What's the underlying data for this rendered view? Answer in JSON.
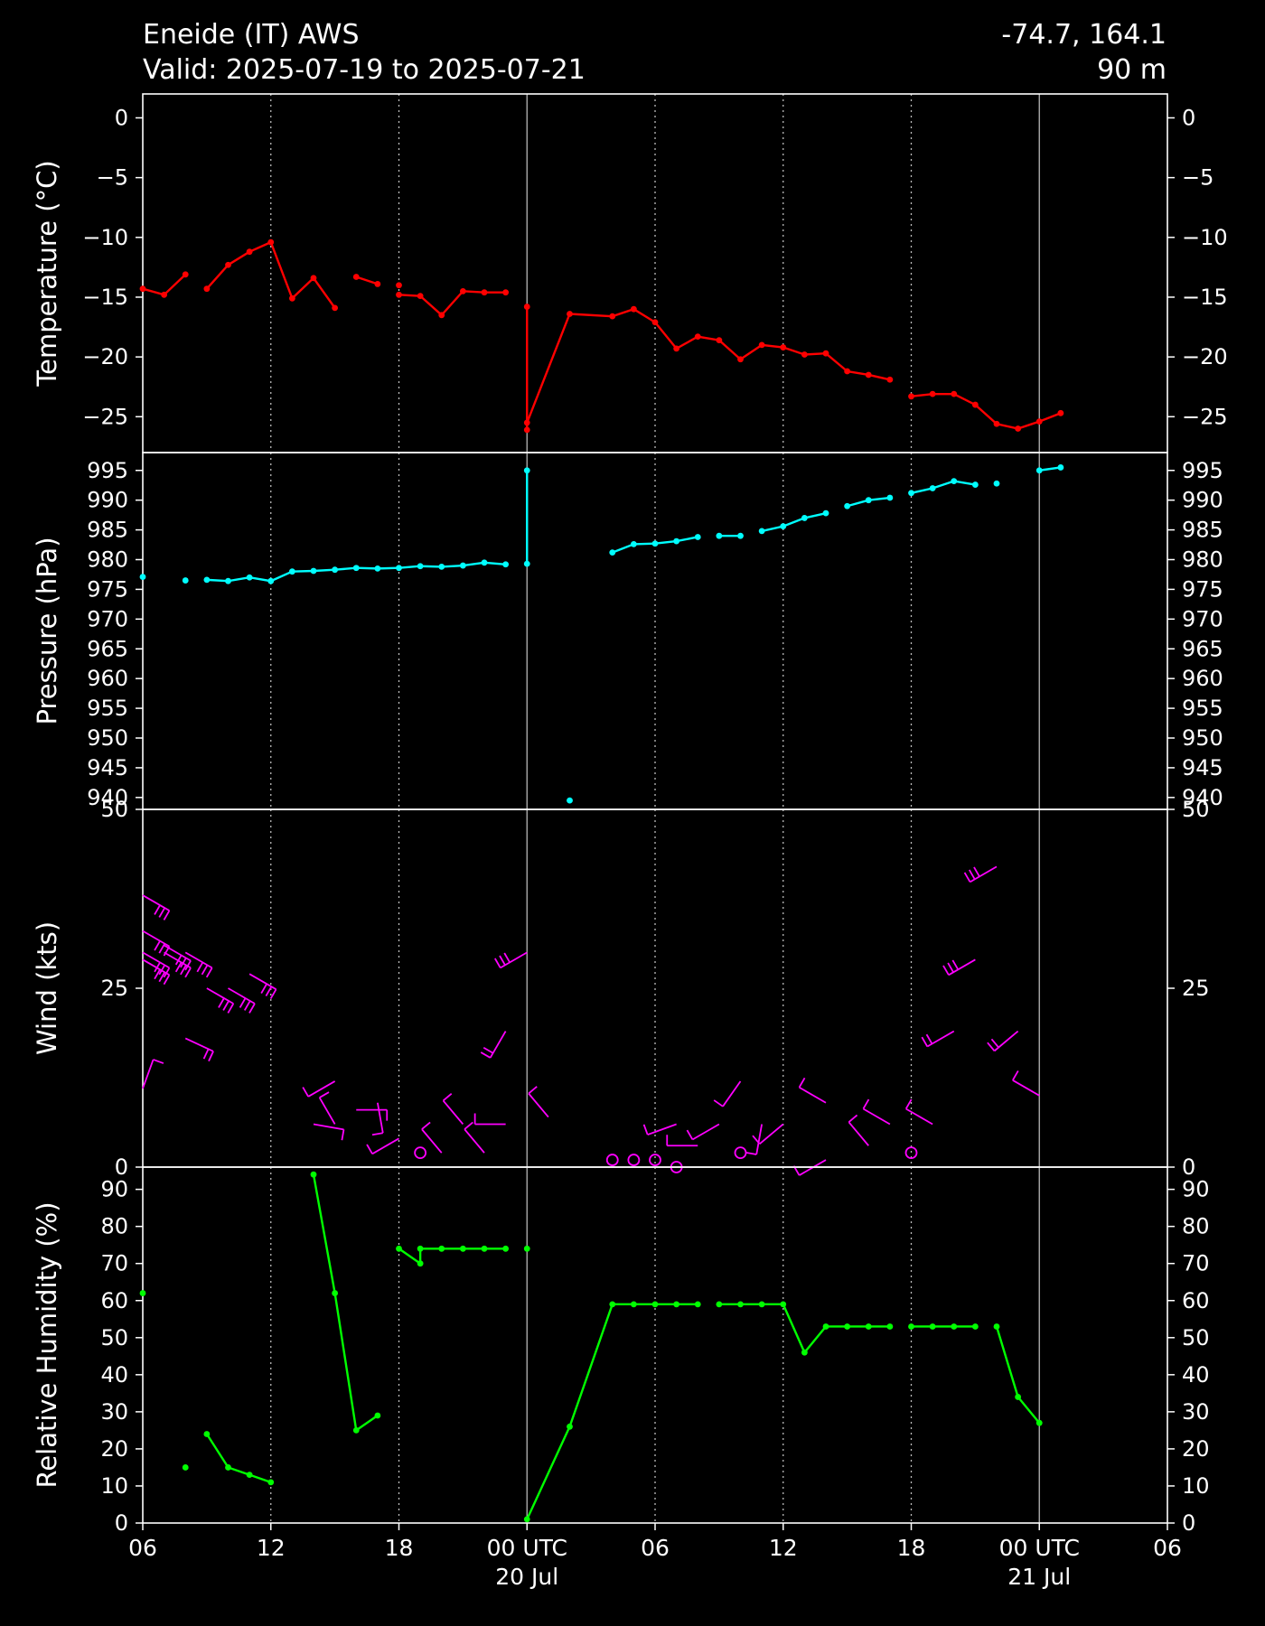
{
  "header": {
    "station": "Eneide (IT) AWS",
    "valid": "Valid: 2025-07-19 to 2025-07-21",
    "coords": "-74.7, 164.1",
    "elevation": "90 m"
  },
  "colors": {
    "background": "#000000",
    "foreground": "#ffffff",
    "temperature": "#ff0000",
    "pressure": "#00ffff",
    "wind": "#ff00ff",
    "humidity": "#00ff00"
  },
  "chart_data": {
    "type": "line",
    "x_axis": {
      "unit": "hours since 2025-07-19 00 UTC",
      "range": [
        6,
        54
      ],
      "ticks": [
        {
          "x": 6,
          "label": "06",
          "sub": ""
        },
        {
          "x": 12,
          "label": "12",
          "sub": ""
        },
        {
          "x": 18,
          "label": "18",
          "sub": ""
        },
        {
          "x": 24,
          "label": "00 UTC",
          "sub": "20 Jul"
        },
        {
          "x": 30,
          "label": "06",
          "sub": ""
        },
        {
          "x": 36,
          "label": "12",
          "sub": ""
        },
        {
          "x": 42,
          "label": "18",
          "sub": ""
        },
        {
          "x": 48,
          "label": "00 UTC",
          "sub": "21 Jul"
        },
        {
          "x": 54,
          "label": "06",
          "sub": ""
        }
      ],
      "major_vlines": [
        24,
        48
      ],
      "minor_vlines": [
        12,
        18,
        30,
        36,
        42
      ]
    },
    "panels": [
      {
        "id": "temperature",
        "ylabel": "Temperature ($^\\circ$C)",
        "ylim": [
          -28,
          2
        ],
        "ticks": [
          0,
          -5,
          -10,
          -15,
          -20,
          -25
        ],
        "segments": [
          [
            [
              6,
              -14.3
            ],
            [
              7,
              -14.8
            ],
            [
              8,
              -13.1
            ]
          ],
          [
            [
              9,
              -14.3
            ],
            [
              10,
              -12.3
            ],
            [
              11,
              -11.2
            ],
            [
              12,
              -10.4
            ],
            [
              13,
              -15.1
            ],
            [
              14,
              -13.4
            ],
            [
              15,
              -15.9
            ]
          ],
          [
            [
              16,
              -13.3
            ],
            [
              17,
              -13.9
            ]
          ],
          [
            [
              18,
              -14.0
            ]
          ],
          [
            [
              18,
              -14.8
            ],
            [
              19,
              -14.9
            ],
            [
              20,
              -16.5
            ],
            [
              21,
              -14.5
            ],
            [
              22,
              -14.6
            ],
            [
              23,
              -14.6
            ]
          ],
          [
            [
              24,
              -15.8
            ],
            [
              24,
              -26.1
            ],
            [
              24,
              -25.5
            ],
            [
              26,
              -16.4
            ],
            [
              28,
              -16.6
            ],
            [
              29,
              -16.0
            ],
            [
              30,
              -17.1
            ],
            [
              31,
              -19.3
            ],
            [
              32,
              -18.3
            ],
            [
              33,
              -18.6
            ],
            [
              34,
              -20.2
            ],
            [
              35,
              -19.0
            ],
            [
              36,
              -19.2
            ],
            [
              37,
              -19.8
            ],
            [
              38,
              -19.7
            ],
            [
              39,
              -21.2
            ],
            [
              40,
              -21.5
            ],
            [
              41,
              -21.9
            ]
          ],
          [
            [
              42,
              -23.3
            ],
            [
              43,
              -23.1
            ],
            [
              44,
              -23.1
            ],
            [
              45,
              -24.0
            ],
            [
              46,
              -25.6
            ],
            [
              47,
              -26.0
            ],
            [
              48,
              -25.4
            ],
            [
              49,
              -24.7
            ]
          ]
        ]
      },
      {
        "id": "pressure",
        "ylabel": "Pressure (hPa)",
        "ylim": [
          938,
          998
        ],
        "ticks": [
          995,
          990,
          985,
          980,
          975,
          970,
          965,
          960,
          955,
          950,
          945,
          940
        ],
        "segments": [
          [
            [
              6,
              977.1
            ]
          ],
          [
            [
              8,
              976.5
            ]
          ],
          [
            [
              9,
              976.6
            ],
            [
              10,
              976.4
            ],
            [
              11,
              977.0
            ],
            [
              12,
              976.4
            ],
            [
              13,
              978.0
            ],
            [
              14,
              978.1
            ],
            [
              15,
              978.3
            ],
            [
              16,
              978.6
            ],
            [
              17,
              978.5
            ],
            [
              18,
              978.6
            ],
            [
              19,
              978.9
            ],
            [
              20,
              978.8
            ],
            [
              21,
              979.0
            ],
            [
              22,
              979.5
            ],
            [
              23,
              979.2
            ]
          ],
          [
            [
              24,
              995.0
            ],
            [
              24,
              979.3
            ]
          ],
          [
            [
              26,
              939.5
            ]
          ],
          [
            [
              28,
              981.2
            ],
            [
              29,
              982.6
            ],
            [
              30,
              982.7
            ],
            [
              31,
              983.1
            ],
            [
              32,
              983.8
            ]
          ],
          [
            [
              33,
              984.0
            ],
            [
              34,
              984.0
            ]
          ],
          [
            [
              35,
              984.8
            ],
            [
              36,
              985.6
            ],
            [
              37,
              987.0
            ],
            [
              38,
              987.8
            ]
          ],
          [
            [
              39,
              989.0
            ],
            [
              40,
              990.0
            ],
            [
              41,
              990.4
            ]
          ],
          [
            [
              42,
              991.2
            ],
            [
              43,
              992.0
            ],
            [
              44,
              993.2
            ],
            [
              45,
              992.6
            ]
          ],
          [
            [
              46,
              992.8
            ]
          ],
          [
            [
              48,
              995.0
            ],
            [
              49,
              995.5
            ]
          ]
        ]
      },
      {
        "id": "wind",
        "ylabel": "Wind (kts)",
        "ylim": [
          0,
          50
        ],
        "ticks": [
          50,
          25,
          0
        ],
        "barbs": [
          {
            "x": 6,
            "y": 38,
            "dir": 120,
            "calm": false
          },
          {
            "x": 6,
            "y": 33,
            "dir": 120,
            "calm": false
          },
          {
            "x": 7,
            "y": 31,
            "dir": 120,
            "calm": false
          },
          {
            "x": 6,
            "y": 30,
            "dir": 120,
            "calm": false
          },
          {
            "x": 6,
            "y": 29,
            "dir": 120,
            "calm": false
          },
          {
            "x": 7,
            "y": 30,
            "dir": 120,
            "calm": false
          },
          {
            "x": 8,
            "y": 30,
            "dir": 120,
            "calm": false
          },
          {
            "x": 9,
            "y": 25,
            "dir": 120,
            "calm": false
          },
          {
            "x": 10,
            "y": 25,
            "dir": 120,
            "calm": false
          },
          {
            "x": 11,
            "y": 27,
            "dir": 120,
            "calm": false
          },
          {
            "x": 8,
            "y": 18,
            "dir": 115,
            "calm": false
          },
          {
            "x": 6,
            "y": 11,
            "dir": 20,
            "calm": false
          },
          {
            "x": 15,
            "y": 12,
            "dir": 240,
            "calm": false
          },
          {
            "x": 14,
            "y": 6,
            "dir": 100,
            "calm": false
          },
          {
            "x": 15,
            "y": 6,
            "dir": 330,
            "calm": false
          },
          {
            "x": 16,
            "y": 8,
            "dir": 90,
            "calm": false
          },
          {
            "x": 17,
            "y": 9,
            "dir": 170,
            "calm": false
          },
          {
            "x": 18,
            "y": 4,
            "dir": 240,
            "calm": false
          },
          {
            "x": 19,
            "y": 2,
            "dir": 0,
            "calm": true
          },
          {
            "x": 20,
            "y": 2,
            "dir": 320,
            "calm": false
          },
          {
            "x": 21,
            "y": 6,
            "dir": 320,
            "calm": false
          },
          {
            "x": 22,
            "y": 2,
            "dir": 320,
            "calm": false
          },
          {
            "x": 23,
            "y": 19,
            "dir": 210,
            "calm": false
          },
          {
            "x": 23,
            "y": 6,
            "dir": 270,
            "calm": false
          },
          {
            "x": 24,
            "y": 30,
            "dir": 240,
            "calm": false
          },
          {
            "x": 25,
            "y": 7,
            "dir": 320,
            "calm": false
          },
          {
            "x": 28,
            "y": 1,
            "dir": 0,
            "calm": true
          },
          {
            "x": 29,
            "y": 1,
            "dir": 0,
            "calm": true
          },
          {
            "x": 30,
            "y": 1,
            "dir": 0,
            "calm": true
          },
          {
            "x": 31,
            "y": 0,
            "dir": 0,
            "calm": true
          },
          {
            "x": 31,
            "y": 6,
            "dir": 250,
            "calm": false
          },
          {
            "x": 32,
            "y": 3,
            "dir": 270,
            "calm": false
          },
          {
            "x": 33,
            "y": 6,
            "dir": 240,
            "calm": false
          },
          {
            "x": 34,
            "y": 2,
            "dir": 0,
            "calm": true
          },
          {
            "x": 34,
            "y": 12,
            "dir": 215,
            "calm": false
          },
          {
            "x": 35,
            "y": 6,
            "dir": 190,
            "calm": false
          },
          {
            "x": 36,
            "y": 6,
            "dir": 230,
            "calm": false
          },
          {
            "x": 38,
            "y": 1,
            "dir": 240,
            "calm": false
          },
          {
            "x": 38,
            "y": 9,
            "dir": 300,
            "calm": false
          },
          {
            "x": 40,
            "y": 3,
            "dir": 320,
            "calm": false
          },
          {
            "x": 41,
            "y": 6,
            "dir": 300,
            "calm": false
          },
          {
            "x": 42,
            "y": 2,
            "dir": 0,
            "calm": true
          },
          {
            "x": 43,
            "y": 6,
            "dir": 300,
            "calm": false
          },
          {
            "x": 44,
            "y": 19,
            "dir": 240,
            "calm": false
          },
          {
            "x": 45,
            "y": 29,
            "dir": 240,
            "calm": false
          },
          {
            "x": 46,
            "y": 42,
            "dir": 240,
            "calm": false
          },
          {
            "x": 47,
            "y": 19,
            "dir": 230,
            "calm": false
          },
          {
            "x": 48,
            "y": 10,
            "dir": 300,
            "calm": false
          }
        ]
      },
      {
        "id": "humidity",
        "ylabel": "Relative Humidity (%)",
        "ylim": [
          0,
          96
        ],
        "ticks": [
          90,
          80,
          70,
          60,
          50,
          40,
          30,
          20,
          10,
          0
        ],
        "segments": [
          [
            [
              6,
              62
            ]
          ],
          [
            [
              8,
              15
            ]
          ],
          [
            [
              9,
              24
            ],
            [
              10,
              15
            ],
            [
              11,
              13
            ],
            [
              12,
              11
            ]
          ],
          [
            [
              14,
              94
            ],
            [
              15,
              62
            ],
            [
              16,
              25
            ],
            [
              17,
              29
            ]
          ],
          [
            [
              18,
              74
            ],
            [
              19,
              70
            ],
            [
              19,
              74
            ],
            [
              20,
              74
            ],
            [
              21,
              74
            ],
            [
              22,
              74
            ],
            [
              23,
              74
            ]
          ],
          [
            [
              24,
              74
            ]
          ],
          [
            [
              24,
              1
            ],
            [
              26,
              26
            ],
            [
              28,
              59
            ],
            [
              29,
              59
            ],
            [
              30,
              59
            ],
            [
              31,
              59
            ],
            [
              32,
              59
            ]
          ],
          [
            [
              33,
              59
            ],
            [
              34,
              59
            ],
            [
              35,
              59
            ],
            [
              36,
              59
            ],
            [
              37,
              46
            ],
            [
              38,
              53
            ],
            [
              39,
              53
            ],
            [
              40,
              53
            ],
            [
              41,
              53
            ]
          ],
          [
            [
              42,
              53
            ],
            [
              43,
              53
            ],
            [
              44,
              53
            ],
            [
              45,
              53
            ]
          ],
          [
            [
              46,
              53
            ],
            [
              47,
              34
            ],
            [
              48,
              27
            ]
          ]
        ]
      }
    ]
  }
}
